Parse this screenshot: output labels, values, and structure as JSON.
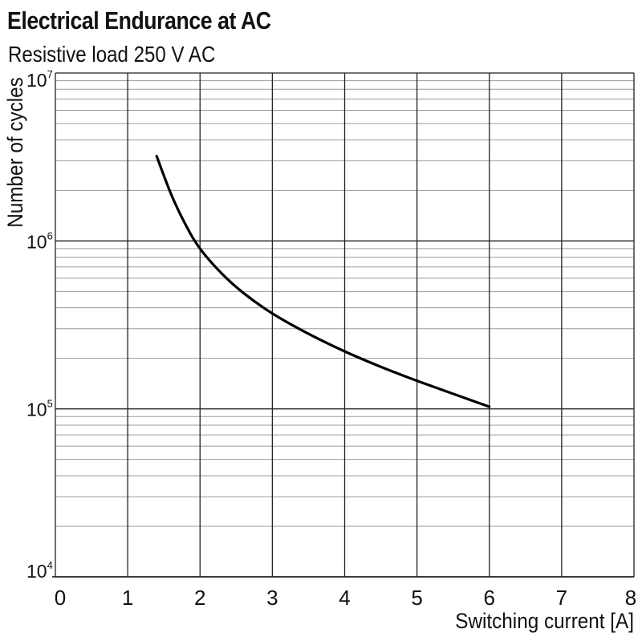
{
  "title": "Electrical Endurance at AC",
  "subtitle": "Resistive load 250 V AC",
  "chart_data": {
    "type": "line",
    "title": "Electrical Endurance at AC",
    "subtitle": "Resistive load 250 V AC",
    "xlabel": "Switching current [A]",
    "ylabel": "Number of cycles",
    "xlim": [
      0,
      8
    ],
    "ylim": [
      10000,
      10000000
    ],
    "yscale": "log",
    "grid": true,
    "x_ticks": [
      "0",
      "1",
      "2",
      "3",
      "4",
      "5",
      "6",
      "7",
      "8"
    ],
    "y_ticks": [
      {
        "base": "10",
        "exp": "4",
        "value": 10000
      },
      {
        "base": "10",
        "exp": "5",
        "value": 100000
      },
      {
        "base": "10",
        "exp": "6",
        "value": 1000000
      },
      {
        "base": "10",
        "exp": "7",
        "value": 10000000
      }
    ],
    "series": [
      {
        "color": "#000000",
        "x": [
          1.4,
          1.6,
          1.8,
          2.0,
          2.3,
          2.6,
          3.0,
          3.5,
          4.0,
          4.5,
          5.0,
          5.5,
          6.0
        ],
        "y": [
          3200000,
          1900000,
          1250000,
          900000,
          640000,
          490000,
          370000,
          280000,
          220000,
          178000,
          147000,
          123000,
          103000
        ]
      }
    ]
  }
}
